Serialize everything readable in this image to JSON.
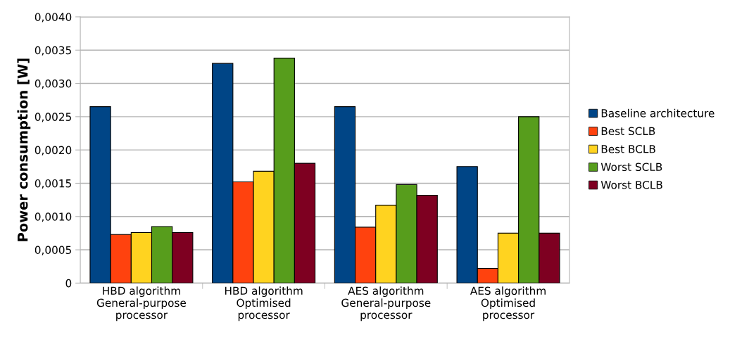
{
  "chart_data": {
    "type": "bar",
    "ylabel": "Power consumption [W]",
    "categories": [
      "HBD algorithm\nGeneral-purpose\nprocessor",
      "HBD algorithm\nOptimised\nprocessor",
      "AES algorithm\nGeneral-purpose\nprocessor",
      "AES algorithm\nOptimised\nprocessor"
    ],
    "series": [
      {
        "name": "Baseline architecture",
        "color": "#004586",
        "values": [
          0.00265,
          0.0033,
          0.00265,
          0.00175
        ]
      },
      {
        "name": "Best SCLB",
        "color": "#ff420e",
        "values": [
          0.00073,
          0.00152,
          0.00084,
          0.00022
        ]
      },
      {
        "name": "Best BCLB",
        "color": "#ffd320",
        "values": [
          0.00076,
          0.00168,
          0.00117,
          0.00075
        ]
      },
      {
        "name": "Worst SCLB",
        "color": "#579d1c",
        "values": [
          0.00085,
          0.00338,
          0.00148,
          0.0025
        ]
      },
      {
        "name": "Worst BCLB",
        "color": "#7e0021",
        "values": [
          0.00076,
          0.0018,
          0.00132,
          0.00075
        ]
      }
    ],
    "ylim": [
      0,
      0.004
    ],
    "yticks": [
      {
        "value": 0,
        "label": "0"
      },
      {
        "value": 0.0005,
        "label": "0,0005"
      },
      {
        "value": 0.001,
        "label": "0,0010"
      },
      {
        "value": 0.0015,
        "label": "0,0015"
      },
      {
        "value": 0.002,
        "label": "0,0020"
      },
      {
        "value": 0.0025,
        "label": "0,0025"
      },
      {
        "value": 0.003,
        "label": "0,0030"
      },
      {
        "value": 0.0035,
        "label": "0,0035"
      },
      {
        "value": 0.004,
        "label": "0,0040"
      }
    ],
    "grid": "y",
    "legend": "right"
  }
}
